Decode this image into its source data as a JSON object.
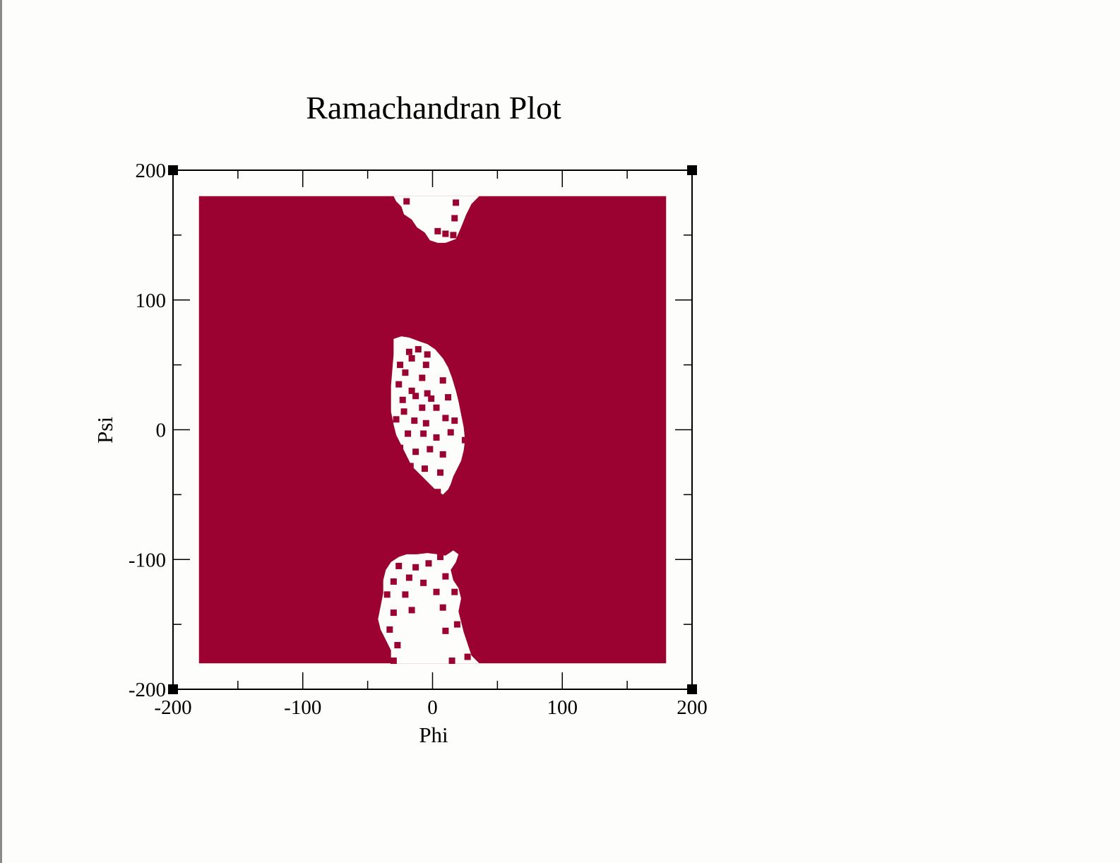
{
  "chart_data": {
    "type": "scatter",
    "title": "Ramachandran Plot",
    "xlabel": "Phi",
    "ylabel": "Psi",
    "xlim": [
      -200,
      200
    ],
    "ylim": [
      -200,
      200
    ],
    "xticks": [
      -200,
      -100,
      0,
      100,
      200
    ],
    "yticks": [
      -200,
      -100,
      0,
      100,
      200
    ],
    "minor_tick_step": 50,
    "grid": false,
    "legend": "none",
    "point_color": "#9b0232",
    "series": [
      {
        "marker": "square",
        "coverage": "dense fill of phi -180..180, psi -180..180",
        "sparse_regions": [
          {
            "phi": [
              -30,
              25
            ],
            "psi": [
              140,
              180
            ]
          },
          {
            "phi": [
              -33,
              25
            ],
            "psi": [
              -50,
              72
            ]
          },
          {
            "phi": [
              -45,
              35
            ],
            "psi": [
              -180,
              -95
            ]
          }
        ],
        "scattered_points": [
          [
            18,
            175
          ],
          [
            -20,
            176
          ],
          [
            17,
            163
          ],
          [
            4,
            153
          ],
          [
            10,
            151
          ],
          [
            16,
            150
          ],
          [
            -18,
            60
          ],
          [
            -11,
            62
          ],
          [
            -4,
            58
          ],
          [
            -25,
            50
          ],
          [
            -16,
            55
          ],
          [
            -5,
            50
          ],
          [
            -21,
            44
          ],
          [
            -8,
            40
          ],
          [
            -26,
            35
          ],
          [
            -16,
            30
          ],
          [
            -4,
            28
          ],
          [
            8,
            38
          ],
          [
            -23,
            23
          ],
          [
            -13,
            26
          ],
          [
            -1,
            24
          ],
          [
            12,
            25
          ],
          [
            -22,
            14
          ],
          [
            -8,
            17
          ],
          [
            3,
            17
          ],
          [
            -28,
            8
          ],
          [
            -14,
            7
          ],
          [
            -5,
            5
          ],
          [
            10,
            9
          ],
          [
            17,
            7
          ],
          [
            -19,
            -3
          ],
          [
            -7,
            -3
          ],
          [
            3,
            -6
          ],
          [
            14,
            -2
          ],
          [
            25,
            -8
          ],
          [
            -25,
            -14
          ],
          [
            -13,
            -17
          ],
          [
            -2,
            -15
          ],
          [
            8,
            -19
          ],
          [
            -17,
            -28
          ],
          [
            -6,
            -30
          ],
          [
            6,
            -33
          ],
          [
            -9,
            -45
          ],
          [
            4,
            -48
          ],
          [
            -26,
            -105
          ],
          [
            -13,
            -106
          ],
          [
            -3,
            -103
          ],
          [
            6,
            -98
          ],
          [
            -30,
            -117
          ],
          [
            -18,
            -114
          ],
          [
            -7,
            -118
          ],
          [
            10,
            -113
          ],
          [
            -35,
            -127
          ],
          [
            -21,
            -127
          ],
          [
            3,
            -125
          ],
          [
            17,
            -125
          ],
          [
            -30,
            -141
          ],
          [
            -16,
            -139
          ],
          [
            8,
            -137
          ],
          [
            -33,
            -154
          ],
          [
            10,
            -155
          ],
          [
            19,
            -150
          ],
          [
            -27,
            -166
          ],
          [
            -30,
            -178
          ],
          [
            15,
            -178
          ],
          [
            27,
            -175
          ]
        ]
      }
    ]
  }
}
